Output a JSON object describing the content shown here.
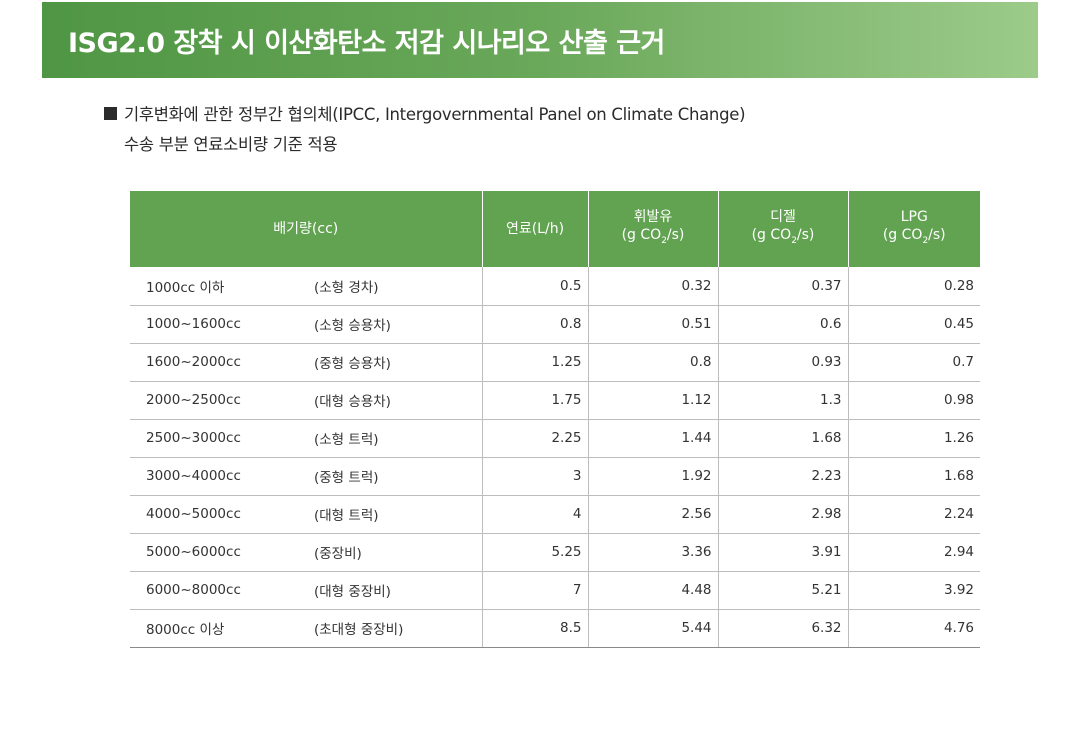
{
  "banner": {
    "title": "ISG2.0 장착 시 이산화탄소 저감 시나리오 산출 근거"
  },
  "intro": {
    "line1": "기후변화에 관한 정부간 협의체(IPCC, Intergovernmental Panel on Climate Change)",
    "line2": "수송 부분 연료소비량 기준 적용"
  },
  "table": {
    "headers": {
      "displacement": "배기량(cc)",
      "fuel": "연료(L/h)",
      "gasoline_name": "휘발유",
      "diesel_name": "디젤",
      "lpg_name": "LPG",
      "unit_prefix": "(g CO",
      "unit_sub": "2",
      "unit_suffix": "/s)"
    },
    "rows": [
      {
        "cc": "1000cc 이하",
        "type": "(소형 경차)",
        "fuel": "0.5",
        "gasoline": "0.32",
        "diesel": "0.37",
        "lpg": "0.28"
      },
      {
        "cc": "1000~1600cc",
        "type": "(소형 승용차)",
        "fuel": "0.8",
        "gasoline": "0.51",
        "diesel": "0.6",
        "lpg": "0.45"
      },
      {
        "cc": "1600~2000cc",
        "type": "(중형 승용차)",
        "fuel": "1.25",
        "gasoline": "0.8",
        "diesel": "0.93",
        "lpg": "0.7"
      },
      {
        "cc": "2000~2500cc",
        "type": "(대형 승용차)",
        "fuel": "1.75",
        "gasoline": "1.12",
        "diesel": "1.3",
        "lpg": "0.98"
      },
      {
        "cc": "2500~3000cc",
        "type": "(소형 트럭)",
        "fuel": "2.25",
        "gasoline": "1.44",
        "diesel": "1.68",
        "lpg": "1.26"
      },
      {
        "cc": "3000~4000cc",
        "type": "(중형 트럭)",
        "fuel": "3",
        "gasoline": "1.92",
        "diesel": "2.23",
        "lpg": "1.68"
      },
      {
        "cc": "4000~5000cc",
        "type": "(대형 트럭)",
        "fuel": "4",
        "gasoline": "2.56",
        "diesel": "2.98",
        "lpg": "2.24"
      },
      {
        "cc": "5000~6000cc",
        "type": "(중장비)",
        "fuel": "5.25",
        "gasoline": "3.36",
        "diesel": "3.91",
        "lpg": "2.94"
      },
      {
        "cc": "6000~8000cc",
        "type": "(대형 중장비)",
        "fuel": "7",
        "gasoline": "4.48",
        "diesel": "5.21",
        "lpg": "3.92"
      },
      {
        "cc": "8000cc 이상",
        "type": "(초대형 중장비)",
        "fuel": "8.5",
        "gasoline": "5.44",
        "diesel": "6.32",
        "lpg": "4.76"
      }
    ]
  },
  "colors": {
    "header_green": "#62a352",
    "banner_start": "#4f9644",
    "banner_end": "#9ccb8a"
  }
}
